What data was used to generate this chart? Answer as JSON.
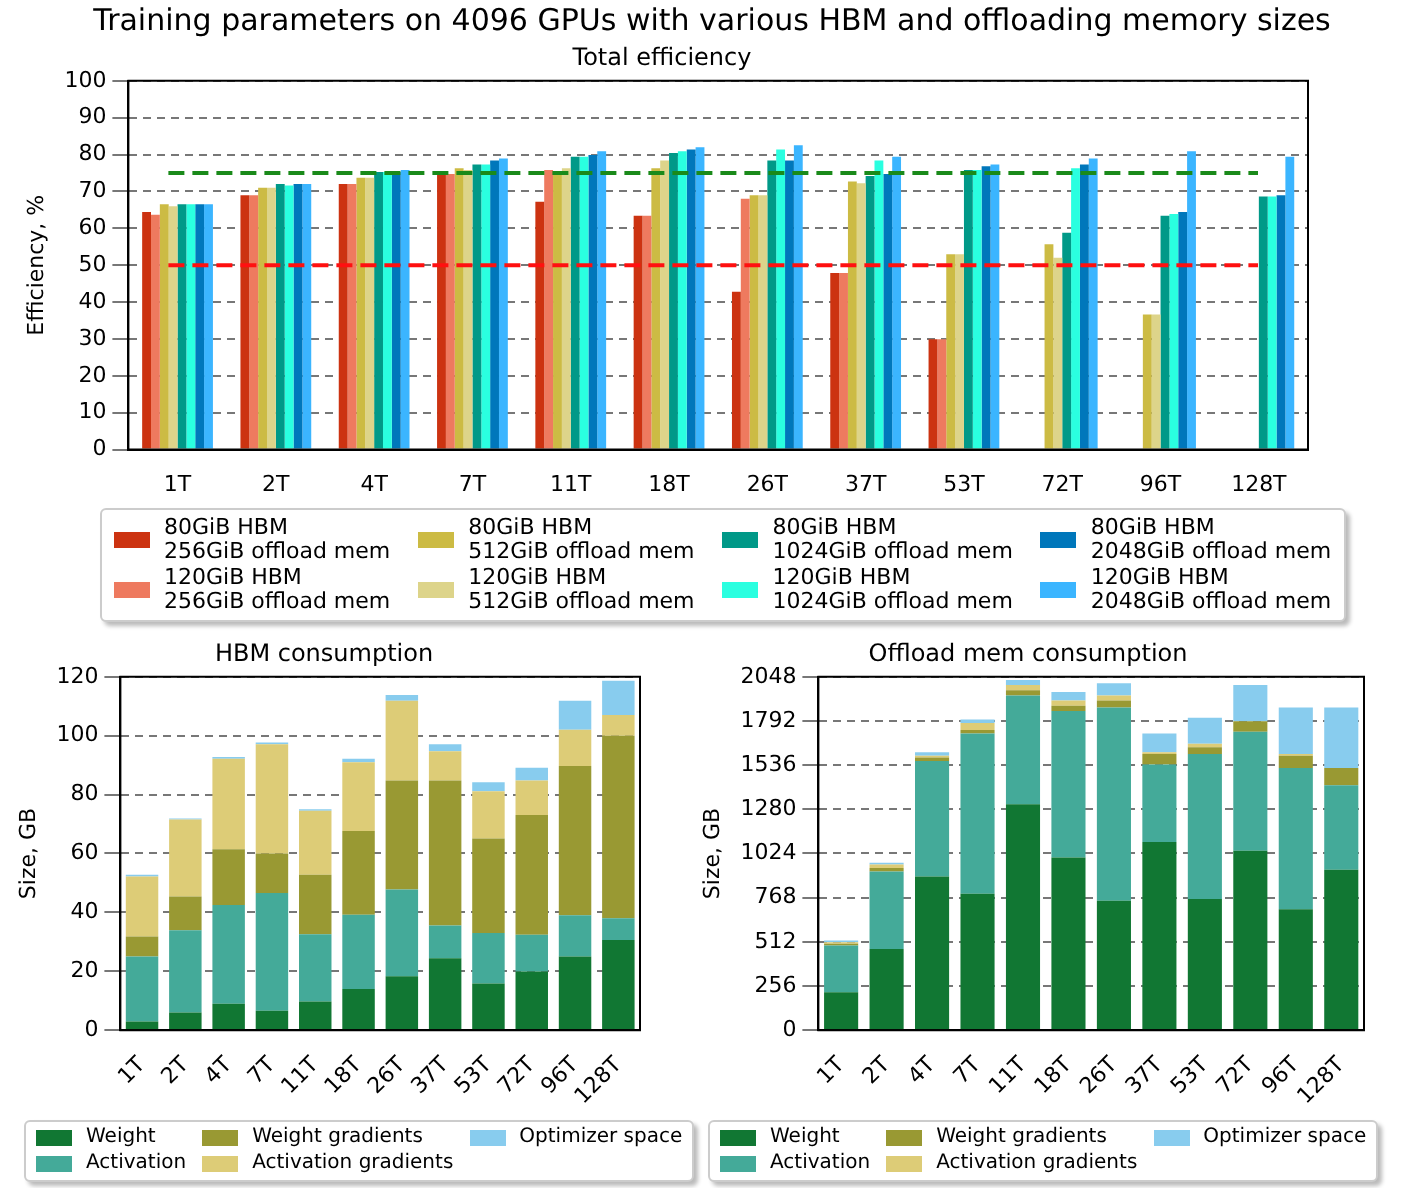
{
  "chart_data": [
    {
      "type": "bar",
      "title": "Training parameters on 4096 GPUs with various HBM and offloading memory sizes",
      "subtitle": "Total efficiency",
      "ylabel": "Efficiency, %",
      "categories": [
        "1T",
        "2T",
        "4T",
        "7T",
        "11T",
        "18T",
        "26T",
        "37T",
        "53T",
        "72T",
        "96T",
        "128T"
      ],
      "ylim": [
        0,
        100
      ],
      "yticks": [
        0,
        10,
        20,
        30,
        40,
        50,
        60,
        70,
        80,
        90,
        100
      ],
      "grid": "y",
      "legend": "bottom",
      "ref_lines": [
        {
          "axis": "y",
          "value": 75,
          "color": "#1a8a1a",
          "line_style": "dashed"
        },
        {
          "axis": "y",
          "value": 50,
          "color": "#ff1010",
          "line_style": "dashed"
        }
      ],
      "series": [
        {
          "name": "80GiB HBM\n256GiB offload mem",
          "color": "#cc3311",
          "values": [
            64.4,
            69,
            72,
            75.3,
            67.2,
            63.4,
            42.8,
            47.9,
            29.9,
            null,
            null,
            null
          ]
        },
        {
          "name": "120GiB HBM\n256GiB offload mem",
          "color": "#ee7a5f",
          "values": [
            63.7,
            69,
            72,
            74.7,
            75.8,
            63.4,
            68,
            47.9,
            29.9,
            null,
            null,
            null
          ]
        },
        {
          "name": "80GiB HBM\n512GiB offload mem",
          "color": "#ccbb44",
          "values": [
            66.5,
            71,
            73.7,
            76.3,
            75.3,
            76.3,
            69,
            72.7,
            53,
            55.7,
            36.6,
            null
          ]
        },
        {
          "name": "120GiB HBM\n512GiB offload mem",
          "color": "#ddd48a",
          "values": [
            66,
            71,
            73.7,
            75.8,
            76.3,
            78.4,
            69,
            72.2,
            53,
            52,
            36.6,
            null
          ]
        },
        {
          "name": "80GiB HBM\n1024GiB offload mem",
          "color": "#009988",
          "values": [
            66.5,
            72,
            75.3,
            77.3,
            79.4,
            80.4,
            78.4,
            74.2,
            75.8,
            58.8,
            63.4,
            68.6
          ]
        },
        {
          "name": "120GiB HBM\n1024GiB offload mem",
          "color": "#2affe0",
          "values": [
            66.5,
            71.6,
            75.3,
            77.3,
            79.4,
            80.9,
            81.4,
            78.4,
            75.8,
            76.3,
            63.9,
            68.6
          ]
        },
        {
          "name": "80GiB HBM\n2048GiB offload mem",
          "color": "#0077bb",
          "values": [
            66.5,
            72,
            75.3,
            78.4,
            79.9,
            81.4,
            78.4,
            74.7,
            76.8,
            77.3,
            64.4,
            69
          ]
        },
        {
          "name": "120GiB HBM\n2048GiB offload mem",
          "color": "#3bb5ff",
          "values": [
            66.5,
            72,
            75.8,
            78.9,
            80.9,
            82,
            82.5,
            79.4,
            77.3,
            78.9,
            80.9,
            79.4
          ]
        }
      ]
    },
    {
      "type": "bar",
      "stacked": true,
      "title": "HBM consumption",
      "ylabel": "Size, GB",
      "categories": [
        "1T",
        "2T",
        "4T",
        "7T",
        "11T",
        "18T",
        "26T",
        "37T",
        "53T",
        "72T",
        "96T",
        "128T"
      ],
      "ylim": [
        0,
        120
      ],
      "yticks": [
        0,
        20,
        40,
        60,
        80,
        100,
        120
      ],
      "grid": "y",
      "legend": "bottom",
      "series": [
        {
          "name": "Weight",
          "color": "#117733",
          "values": [
            2.9,
            6,
            9,
            6.6,
            9.7,
            14,
            18.3,
            24.4,
            15.8,
            19.9,
            25,
            30.6
          ]
        },
        {
          "name": "Activation",
          "color": "#44aa99",
          "values": [
            22.1,
            27.9,
            33.5,
            40,
            22.9,
            25.2,
            29.5,
            11.1,
            17.2,
            12.5,
            14,
            7.4
          ]
        },
        {
          "name": "Weight gradients",
          "color": "#999933",
          "values": [
            6.8,
            11.5,
            18.9,
            13.4,
            20.2,
            28.4,
            37,
            49.3,
            32.1,
            40.7,
            50.7,
            62
          ]
        },
        {
          "name": "Activation gradients",
          "color": "#ddcc77",
          "values": [
            20.4,
            26.1,
            30.8,
            37.1,
            21.7,
            23.4,
            27.1,
            9.9,
            16,
            11.7,
            12.3,
            7
          ]
        },
        {
          "name": "Optimizer space",
          "color": "#88ccee",
          "values": [
            0.6,
            0.4,
            0.6,
            0.6,
            0.5,
            1.2,
            1.9,
            2.4,
            3.1,
            4.3,
            9.9,
            11.7
          ]
        }
      ]
    },
    {
      "type": "bar",
      "stacked": true,
      "title": "Offload mem consumption",
      "ylabel": "Size, GB",
      "categories": [
        "1T",
        "2T",
        "4T",
        "7T",
        "11T",
        "18T",
        "26T",
        "37T",
        "53T",
        "72T",
        "96T",
        "128T"
      ],
      "ylim": [
        0,
        2048
      ],
      "yticks": [
        0,
        256,
        512,
        768,
        1024,
        1280,
        1536,
        1792,
        2048
      ],
      "grid": "y",
      "legend": "bottom",
      "series": [
        {
          "name": "Weight",
          "color": "#117733",
          "values": [
            220,
            470,
            890,
            790,
            1310,
            1000,
            750,
            1090,
            760,
            1040,
            700,
            930
          ]
        },
        {
          "name": "Activation",
          "color": "#44aa99",
          "values": [
            270,
            450,
            670,
            930,
            630,
            850,
            1120,
            450,
            840,
            690,
            820,
            490
          ]
        },
        {
          "name": "Weight gradients",
          "color": "#999933",
          "values": [
            10,
            20,
            20,
            20,
            30,
            30,
            40,
            60,
            40,
            60,
            70,
            100
          ]
        },
        {
          "name": "Activation gradients",
          "color": "#ddcc77",
          "values": [
            10,
            20,
            10,
            40,
            30,
            30,
            30,
            10,
            20,
            0,
            10,
            0
          ]
        },
        {
          "name": "Optimizer space",
          "color": "#88ccee",
          "values": [
            10,
            10,
            20,
            20,
            30,
            50,
            70,
            110,
            150,
            210,
            270,
            350
          ]
        }
      ]
    }
  ]
}
